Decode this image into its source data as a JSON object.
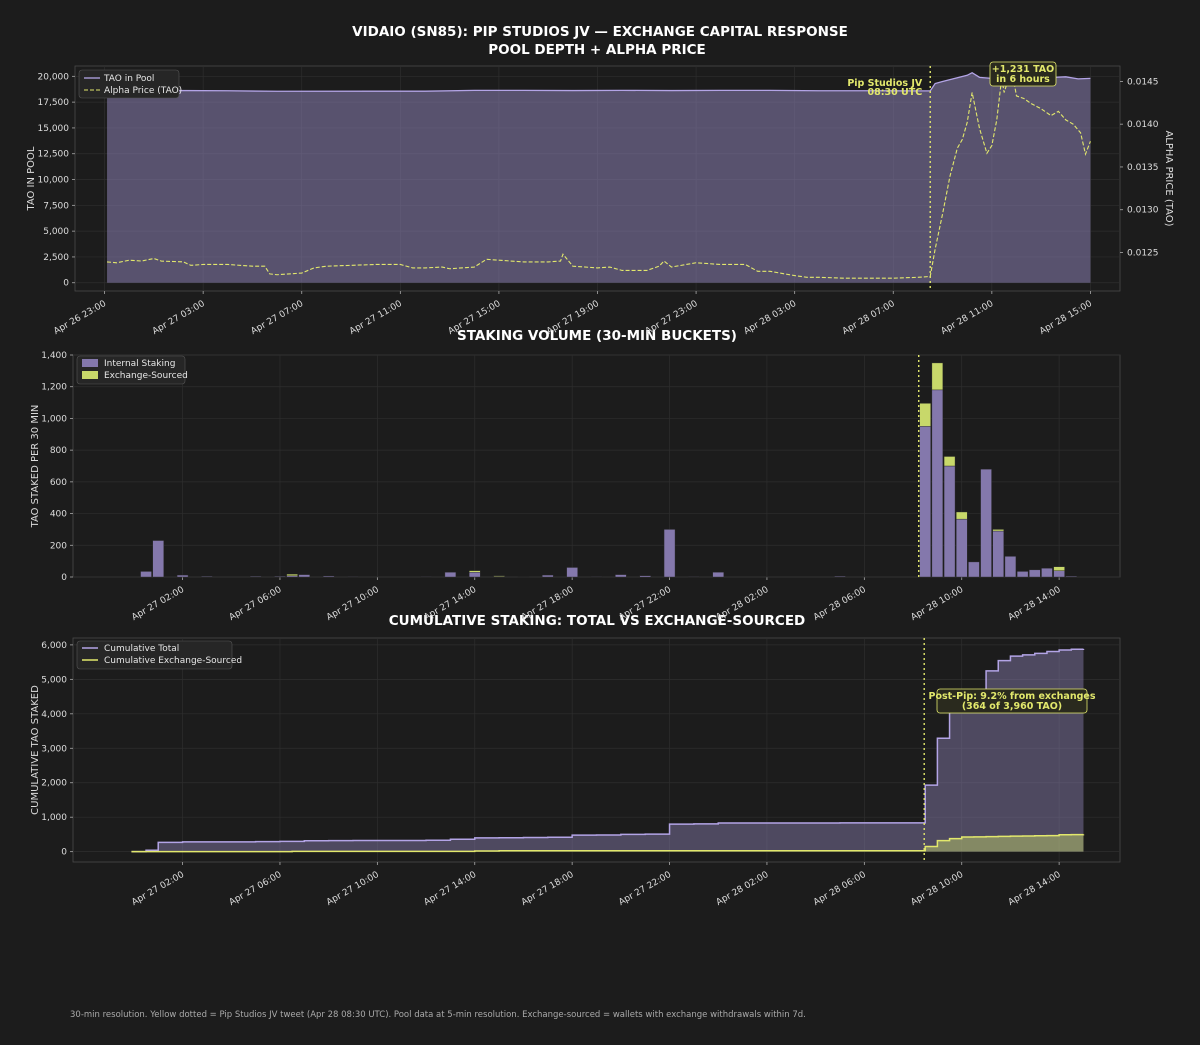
{
  "header": {
    "title": "VIDAIO (SN85): PIP STUDIOS JV — EXCHANGE CAPITAL RESPONSE",
    "subtitle": "POOL DEPTH + ALPHA PRICE"
  },
  "footer": {
    "note": "30-min resolution. Yellow dotted = Pip Studios JV tweet (Apr 28 08:30 UTC). Pool data at 5-min resolution. Exchange-sourced = wallets with exchange withdrawals within 7d."
  },
  "colors": {
    "background": "#1c1c1c",
    "panel": "#1c1c1c",
    "purple": "#b3a4e6",
    "purple_fill": "#8b80b3",
    "yellow": "#e2e86c",
    "bar_internal": "#8478ac",
    "bar_exchange": "#c8d86a",
    "grid": "#2e2e2e"
  },
  "chart_data": [
    {
      "id": "pool",
      "type": "area",
      "title": "",
      "xlabel": "",
      "ylabel": "TAO IN POOL",
      "y2label": "ALPHA PRICE (TAO)",
      "x_unit": "hours from Apr 27 00:00 UTC",
      "xlim": [
        -2.2,
        40.2
      ],
      "ylim": [
        -800,
        21000
      ],
      "y2lim": [
        0.01205,
        0.01468
      ],
      "x_ticks": [
        {
          "x": -1,
          "label": "Apr 26 23:00"
        },
        {
          "x": 3,
          "label": "Apr 27 03:00"
        },
        {
          "x": 7,
          "label": "Apr 27 07:00"
        },
        {
          "x": 11,
          "label": "Apr 27 11:00"
        },
        {
          "x": 15,
          "label": "Apr 27 15:00"
        },
        {
          "x": 19,
          "label": "Apr 27 19:00"
        },
        {
          "x": 23,
          "label": "Apr 27 23:00"
        },
        {
          "x": 27,
          "label": "Apr 28 03:00"
        },
        {
          "x": 31,
          "label": "Apr 28 07:00"
        },
        {
          "x": 35,
          "label": "Apr 28 11:00"
        },
        {
          "x": 39,
          "label": "Apr 28 15:00"
        }
      ],
      "y_ticks": [
        {
          "v": 0,
          "label": "0"
        },
        {
          "v": 2500,
          "label": "2,500"
        },
        {
          "v": 5000,
          "label": "5,000"
        },
        {
          "v": 7500,
          "label": "7,500"
        },
        {
          "v": 10000,
          "label": "10,000"
        },
        {
          "v": 12500,
          "label": "12,500"
        },
        {
          "v": 15000,
          "label": "15,000"
        },
        {
          "v": 17500,
          "label": "17,500"
        },
        {
          "v": 20000,
          "label": "20,000"
        }
      ],
      "y2_ticks": [
        {
          "v": 0.0125,
          "label": "0.0125"
        },
        {
          "v": 0.013,
          "label": "0.0130"
        },
        {
          "v": 0.0135,
          "label": "0.0135"
        },
        {
          "v": 0.014,
          "label": "0.0140"
        },
        {
          "v": 0.0145,
          "label": "0.0145"
        }
      ],
      "legend": [
        "TAO in Pool",
        "Alpha Price (TAO)"
      ],
      "legend_placement": "top-left",
      "event_x": 32.5,
      "event_label_1": "Pip Studios JV",
      "event_label_2": "08:30 UTC",
      "annotation_1": "+1,231 TAO",
      "annotation_2": "in 6 hours",
      "series": [
        {
          "name": "TAO in Pool",
          "x": [
            -0.9,
            0,
            2,
            4,
            6,
            10,
            12,
            14,
            16,
            18,
            20,
            22,
            24,
            26,
            28,
            30,
            32,
            32.5,
            32.7,
            33,
            33.5,
            34,
            34.2,
            34.5,
            35,
            35.2,
            35.5,
            36,
            36.2,
            36.5,
            37,
            37.5,
            38,
            38.5,
            39
          ],
          "values": [
            18650,
            18650,
            18620,
            18600,
            18550,
            18560,
            18560,
            18640,
            18640,
            18620,
            18640,
            18620,
            18640,
            18640,
            18600,
            18600,
            18590,
            18590,
            19300,
            19500,
            19800,
            20100,
            20350,
            19900,
            19800,
            20200,
            20100,
            20000,
            20100,
            20100,
            20050,
            19900,
            19950,
            19750,
            19800
          ]
        },
        {
          "name": "Alpha Price (TAO)",
          "x": [
            -0.9,
            -0.5,
            0,
            0.5,
            1,
            1.3,
            2.2,
            2.5,
            3,
            4,
            5,
            5.5,
            5.7,
            6,
            7,
            7.5,
            8,
            9,
            10,
            11,
            11.5,
            12,
            12.7,
            13,
            14,
            14.5,
            15,
            16,
            17,
            17.5,
            17.6,
            18,
            19,
            19.5,
            20,
            21,
            21.5,
            21.7,
            22,
            23,
            24,
            25,
            25.5,
            26,
            27,
            27.5,
            28,
            29,
            30,
            31,
            32,
            32.5,
            32.7,
            33,
            33.3,
            33.6,
            33.8,
            34,
            34.2,
            34.5,
            34.8,
            35,
            35.2,
            35.4,
            35.5,
            35.8,
            36,
            36.3,
            36.6,
            37,
            37.4,
            37.7,
            38,
            38.3,
            38.6,
            38.8,
            39
          ],
          "values": [
            0.01239,
            0.01238,
            0.01241,
            0.0124,
            0.01243,
            0.0124,
            0.01239,
            0.01235,
            0.01236,
            0.01236,
            0.01234,
            0.01234,
            0.01225,
            0.01224,
            0.01226,
            0.01232,
            0.01234,
            0.01235,
            0.01236,
            0.01236,
            0.01232,
            0.01232,
            0.01233,
            0.01231,
            0.01233,
            0.01242,
            0.01241,
            0.01239,
            0.01239,
            0.0124,
            0.01248,
            0.01234,
            0.01232,
            0.01233,
            0.01229,
            0.01229,
            0.01234,
            0.0124,
            0.01233,
            0.01238,
            0.01236,
            0.01236,
            0.01228,
            0.01228,
            0.01223,
            0.01221,
            0.01221,
            0.0122,
            0.0122,
            0.0122,
            0.01221,
            0.01222,
            0.01254,
            0.01295,
            0.01339,
            0.01372,
            0.01382,
            0.01402,
            0.01437,
            0.01395,
            0.01366,
            0.01375,
            0.01405,
            0.01454,
            0.01437,
            0.01465,
            0.01433,
            0.0143,
            0.01424,
            0.01418,
            0.0141,
            0.01415,
            0.01405,
            0.014,
            0.0139,
            0.01365,
            0.0138
          ]
        }
      ]
    },
    {
      "id": "volume",
      "type": "bar",
      "title": "STAKING VOLUME (30-MIN BUCKETS)",
      "xlabel": "",
      "ylabel": "TAO STAKED PER 30 MIN",
      "x_unit": "hours from Apr 27 00:00 UTC",
      "xlim": [
        -2.5,
        40.5
      ],
      "ylim": [
        0,
        1400
      ],
      "x_ticks": [
        {
          "x": 2,
          "label": "Apr 27 02:00"
        },
        {
          "x": 6,
          "label": "Apr 27 06:00"
        },
        {
          "x": 10,
          "label": "Apr 27 10:00"
        },
        {
          "x": 14,
          "label": "Apr 27 14:00"
        },
        {
          "x": 18,
          "label": "Apr 27 18:00"
        },
        {
          "x": 22,
          "label": "Apr 27 22:00"
        },
        {
          "x": 26,
          "label": "Apr 28 02:00"
        },
        {
          "x": 30,
          "label": "Apr 28 06:00"
        },
        {
          "x": 34,
          "label": "Apr 28 10:00"
        },
        {
          "x": 38,
          "label": "Apr 28 14:00"
        }
      ],
      "y_ticks": [
        {
          "v": 0,
          "label": "0"
        },
        {
          "v": 200,
          "label": "200"
        },
        {
          "v": 400,
          "label": "400"
        },
        {
          "v": 600,
          "label": "600"
        },
        {
          "v": 800,
          "label": "800"
        },
        {
          "v": 1000,
          "label": "1,000"
        },
        {
          "v": 1200,
          "label": "1,200"
        },
        {
          "v": 1400,
          "label": "1,400"
        }
      ],
      "legend": [
        "Internal Staking",
        "Exchange-Sourced"
      ],
      "legend_placement": "top-left",
      "event_x": 32.5,
      "bar_width_hours": 0.45,
      "x": [
        0.5,
        1,
        2,
        3,
        5,
        6,
        6.5,
        7,
        8,
        9,
        12,
        13,
        14,
        15,
        16,
        17,
        18,
        19,
        20,
        21,
        22,
        23,
        24,
        29,
        32.5,
        33,
        33.5,
        34,
        34.5,
        35,
        35.5,
        36,
        36.5,
        37,
        37.5,
        38,
        38.5
      ],
      "series": [
        {
          "name": "Internal Staking",
          "values": [
            35,
            230,
            12,
            4,
            4,
            4,
            8,
            15,
            6,
            3,
            3,
            30,
            30,
            3,
            2,
            12,
            60,
            3,
            15,
            8,
            300,
            3,
            30,
            5,
            950,
            1180,
            700,
            365,
            95,
            680,
            290,
            130,
            35,
            45,
            55,
            40,
            5
          ]
        },
        {
          "name": "Exchange-Sourced",
          "values": [
            0,
            0,
            0,
            0,
            0,
            0,
            10,
            0,
            0,
            0,
            0,
            0,
            10,
            5,
            0,
            0,
            0,
            0,
            0,
            0,
            0,
            0,
            0,
            0,
            145,
            170,
            60,
            45,
            0,
            0,
            10,
            0,
            0,
            0,
            0,
            25,
            0
          ]
        }
      ]
    },
    {
      "id": "cumulative",
      "type": "area",
      "title": "CUMULATIVE STAKING: TOTAL VS EXCHANGE-SOURCED",
      "xlabel": "",
      "ylabel": "CUMULATIVE TAO STAKED",
      "x_unit": "hours from Apr 27 00:00 UTC",
      "xlim": [
        -2.5,
        40.5
      ],
      "ylim": [
        -300,
        6200
      ],
      "x_ticks": [
        {
          "x": 2,
          "label": "Apr 27 02:00"
        },
        {
          "x": 6,
          "label": "Apr 27 06:00"
        },
        {
          "x": 10,
          "label": "Apr 27 10:00"
        },
        {
          "x": 14,
          "label": "Apr 27 14:00"
        },
        {
          "x": 18,
          "label": "Apr 27 18:00"
        },
        {
          "x": 22,
          "label": "Apr 27 22:00"
        },
        {
          "x": 26,
          "label": "Apr 28 02:00"
        },
        {
          "x": 30,
          "label": "Apr 28 06:00"
        },
        {
          "x": 34,
          "label": "Apr 28 10:00"
        },
        {
          "x": 38,
          "label": "Apr 28 14:00"
        }
      ],
      "y_ticks": [
        {
          "v": 0,
          "label": "0"
        },
        {
          "v": 1000,
          "label": "1,000"
        },
        {
          "v": 2000,
          "label": "2,000"
        },
        {
          "v": 3000,
          "label": "3,000"
        },
        {
          "v": 4000,
          "label": "4,000"
        },
        {
          "v": 5000,
          "label": "5,000"
        },
        {
          "v": 6000,
          "label": "6,000"
        }
      ],
      "legend": [
        "Cumulative Total",
        "Cumulative Exchange-Sourced"
      ],
      "legend_placement": "top-left",
      "event_x": 32.5,
      "annotation_1": "Post-Pip: 9.2% from exchanges",
      "annotation_2": "(364 of 3,960 TAO)",
      "series": [
        {
          "name": "Cumulative Total",
          "x": [
            -0.1,
            0.5,
            1,
            2,
            5,
            6,
            7,
            8,
            9,
            12,
            13,
            14,
            15,
            16,
            17,
            18,
            19,
            20,
            21,
            22,
            23,
            24,
            29,
            32.5,
            33,
            33.5,
            34,
            34.5,
            35,
            35.5,
            36,
            36.5,
            37,
            37.5,
            38,
            38.5,
            39
          ],
          "values": [
            0,
            40,
            270,
            285,
            290,
            300,
            315,
            320,
            325,
            330,
            360,
            400,
            405,
            410,
            420,
            480,
            485,
            500,
            510,
            800,
            805,
            830,
            835,
            1930,
            3290,
            4050,
            4470,
            4565,
            5245,
            5545,
            5675,
            5710,
            5755,
            5810,
            5850,
            5875,
            5880
          ]
        },
        {
          "name": "Cumulative Exchange-Sourced",
          "x": [
            -0.1,
            6.5,
            14,
            15,
            32.5,
            33,
            33.5,
            34,
            34.5,
            35,
            35.5,
            36,
            36.5,
            37,
            37.5,
            38,
            38.5,
            39
          ],
          "values": [
            0,
            10,
            20,
            25,
            150,
            320,
            380,
            425,
            430,
            435,
            445,
            450,
            455,
            460,
            465,
            490,
            495,
            500
          ]
        }
      ]
    }
  ]
}
